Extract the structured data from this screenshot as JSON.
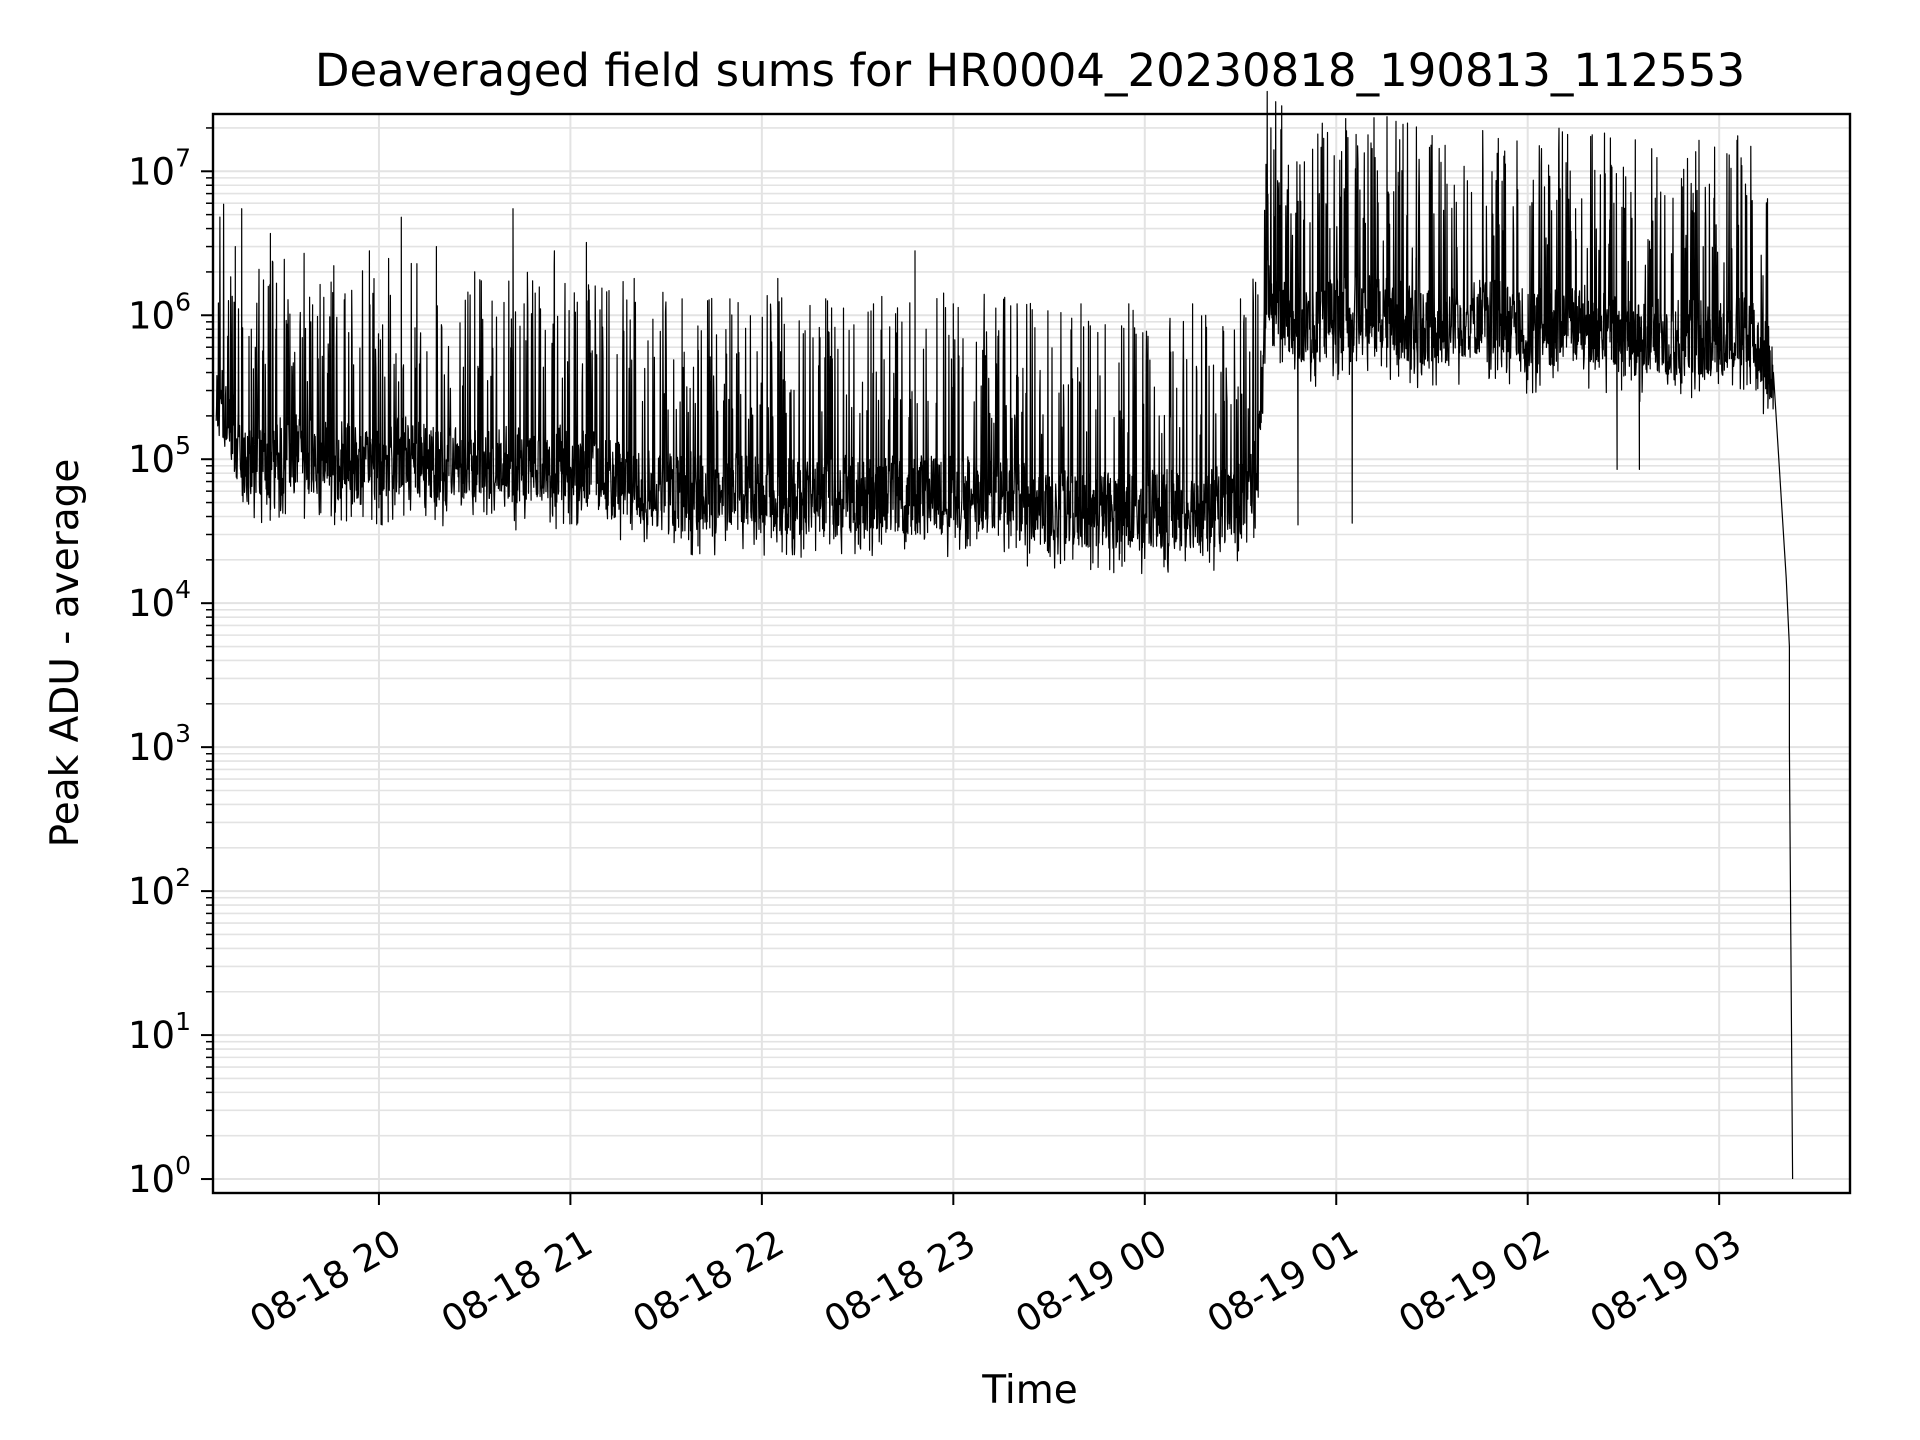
{
  "chart_data": {
    "type": "line",
    "title": "Deaveraged field sums for HR0004_20230818_190813_112553",
    "xlabel": "Time",
    "ylabel": "Peak ADU - average",
    "yscale": "log",
    "ylim": [
      0.8,
      25000000
    ],
    "xlim": [
      "2023-08-18 19:08",
      "2023-08-19 03:41"
    ],
    "x_ticks": [
      {
        "value": "2023-08-18 20:00",
        "label": "08-18 20"
      },
      {
        "value": "2023-08-18 21:00",
        "label": "08-18 21"
      },
      {
        "value": "2023-08-18 22:00",
        "label": "08-18 22"
      },
      {
        "value": "2023-08-18 23:00",
        "label": "08-18 23"
      },
      {
        "value": "2023-08-19 00:00",
        "label": "08-19 00"
      },
      {
        "value": "2023-08-19 01:00",
        "label": "08-19 01"
      },
      {
        "value": "2023-08-19 02:00",
        "label": "08-19 02"
      },
      {
        "value": "2023-08-19 03:00",
        "label": "08-19 03"
      }
    ],
    "y_ticks": [
      {
        "value": 1,
        "base": "10",
        "exp": "0"
      },
      {
        "value": 10,
        "base": "10",
        "exp": "1"
      },
      {
        "value": 100,
        "base": "10",
        "exp": "2"
      },
      {
        "value": 1000,
        "base": "10",
        "exp": "3"
      },
      {
        "value": 10000,
        "base": "10",
        "exp": "4"
      },
      {
        "value": 100000,
        "base": "10",
        "exp": "5"
      },
      {
        "value": 1000000,
        "base": "10",
        "exp": "6"
      },
      {
        "value": 10000000,
        "base": "10",
        "exp": "7"
      }
    ],
    "grid": true,
    "line_color": "#000000",
    "grid_color": "#e3e3e3",
    "series": [
      {
        "points": [
          [
            "2023-08-18 19:09",
            300000
          ],
          [
            "2023-08-18 19:13",
            200000
          ],
          [
            "2023-08-18 19:18",
            90000
          ],
          [
            "2023-08-18 19:25",
            100000
          ],
          [
            "2023-08-18 19:35",
            110000
          ],
          [
            "2023-08-18 19:45",
            100000
          ],
          [
            "2023-08-18 19:55",
            90000
          ],
          [
            "2023-08-18 20:10",
            110000
          ],
          [
            "2023-08-18 20:25",
            90000
          ],
          [
            "2023-08-18 20:40",
            95000
          ],
          [
            "2023-08-18 20:50",
            80000
          ],
          [
            "2023-08-18 21:00",
            100000
          ],
          [
            "2023-08-18 21:15",
            70000
          ],
          [
            "2023-08-18 21:30",
            60000
          ],
          [
            "2023-08-18 21:45",
            60000
          ],
          [
            "2023-08-18 22:00",
            60000
          ],
          [
            "2023-08-18 22:15",
            55000
          ],
          [
            "2023-08-18 22:30",
            60000
          ],
          [
            "2023-08-18 22:45",
            55000
          ],
          [
            "2023-08-18 23:00",
            60000
          ],
          [
            "2023-08-18 23:15",
            55000
          ],
          [
            "2023-08-18 23:30",
            45000
          ],
          [
            "2023-08-18 23:45",
            45000
          ],
          [
            "2023-08-19 00:00",
            45000
          ],
          [
            "2023-08-19 00:15",
            45000
          ],
          [
            "2023-08-19 00:30",
            50000
          ],
          [
            "2023-08-19 00:35",
            80000
          ],
          [
            "2023-08-19 00:38",
            1500000
          ],
          [
            "2023-08-19 00:50",
            800000
          ],
          [
            "2023-08-19 01:00",
            1000000
          ],
          [
            "2023-08-19 01:15",
            1000000
          ],
          [
            "2023-08-19 01:30",
            800000
          ],
          [
            "2023-08-19 01:45",
            1000000
          ],
          [
            "2023-08-19 02:00",
            800000
          ],
          [
            "2023-08-19 02:15",
            900000
          ],
          [
            "2023-08-19 02:30",
            700000
          ],
          [
            "2023-08-19 02:45",
            700000
          ],
          [
            "2023-08-19 03:00",
            700000
          ],
          [
            "2023-08-19 03:10",
            800000
          ],
          [
            "2023-08-19 03:17",
            400000
          ],
          [
            "2023-08-19 03:21",
            15000
          ],
          [
            "2023-08-19 03:22",
            5000
          ],
          [
            "2023-08-19 03:22",
            1000
          ],
          [
            "2023-08-19 03:23",
            1
          ]
        ],
        "spikes": [
          [
            "2023-08-18 19:15",
            3000000
          ],
          [
            "2023-08-18 19:17",
            5500000
          ],
          [
            "2023-08-18 19:20",
            800000
          ],
          [
            "2023-08-18 19:26",
            3700000
          ],
          [
            "2023-08-18 19:36",
            700000
          ],
          [
            "2023-08-18 19:45",
            1700000
          ],
          [
            "2023-08-18 19:57",
            2800000
          ],
          [
            "2023-08-18 20:07",
            4800000
          ],
          [
            "2023-08-18 20:18",
            3000000
          ],
          [
            "2023-08-18 20:30",
            2000000
          ],
          [
            "2023-08-18 20:42",
            5500000
          ],
          [
            "2023-08-18 20:55",
            2800000
          ],
          [
            "2023-08-18 21:05",
            3200000
          ],
          [
            "2023-08-18 21:20",
            1800000
          ],
          [
            "2023-08-18 21:35",
            1300000
          ],
          [
            "2023-08-18 21:50",
            1300000
          ],
          [
            "2023-08-18 22:05",
            1800000
          ],
          [
            "2023-08-18 22:20",
            1300000
          ],
          [
            "2023-08-18 22:35",
            1200000
          ],
          [
            "2023-08-18 22:48",
            2800000
          ],
          [
            "2023-08-18 23:00",
            1200000
          ],
          [
            "2023-08-18 23:20",
            1200000
          ],
          [
            "2023-08-18 23:40",
            1200000
          ],
          [
            "2023-08-18 23:55",
            1200000
          ],
          [
            "2023-08-19 00:15",
            1200000
          ],
          [
            "2023-08-19 00:30",
            1300000
          ],
          [
            "2023-08-19 00:42",
            5000000
          ],
          [
            "2023-08-19 00:58",
            4000000
          ],
          [
            "2023-08-19 01:10",
            3000000
          ],
          [
            "2023-08-19 01:25",
            2500000
          ],
          [
            "2023-08-19 01:37",
            8000000
          ],
          [
            "2023-08-19 01:46",
            10500000
          ],
          [
            "2023-08-19 02:15",
            5500000
          ],
          [
            "2023-08-19 02:27",
            6000000
          ],
          [
            "2023-08-19 02:40",
            6500000
          ],
          [
            "2023-08-19 02:55",
            3000000
          ],
          [
            "2023-08-19 03:10",
            3800000
          ]
        ],
        "dips": [
          [
            "2023-08-18 19:55",
            40000
          ],
          [
            "2023-08-18 20:01",
            35000
          ],
          [
            "2023-08-18 21:02",
            35000
          ],
          [
            "2023-08-18 21:40",
            25000
          ],
          [
            "2023-08-18 22:10",
            28000
          ],
          [
            "2023-08-18 23:25",
            30000
          ],
          [
            "2023-08-18 23:52",
            20000
          ],
          [
            "2023-08-19 00:10",
            28000
          ],
          [
            "2023-08-19 00:48",
            35000
          ],
          [
            "2023-08-19 01:05",
            36000
          ],
          [
            "2023-08-19 02:28",
            85000
          ],
          [
            "2023-08-19 02:35",
            85000
          ]
        ]
      }
    ]
  }
}
